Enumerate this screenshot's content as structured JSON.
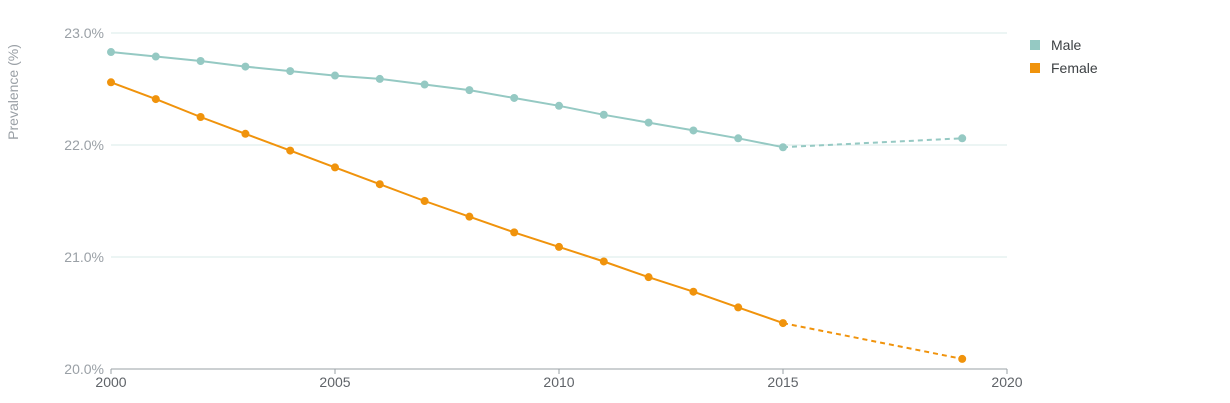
{
  "chart_data": {
    "type": "line",
    "title": "",
    "xlabel": "",
    "ylabel": "Prevalence (%)",
    "xlim": [
      2000,
      2020
    ],
    "ylim": [
      20.0,
      23.0
    ],
    "x_ticks": [
      "2000",
      "2005",
      "2010",
      "2015",
      "2020"
    ],
    "y_ticks": [
      "20.0%",
      "21.0%",
      "22.0%",
      "23.0%"
    ],
    "grid": "horizontal",
    "legend_position": "top-right",
    "series": [
      {
        "name": "Male",
        "color": "#95c9c3",
        "x": [
          2000,
          2001,
          2002,
          2003,
          2004,
          2005,
          2006,
          2007,
          2008,
          2009,
          2010,
          2011,
          2012,
          2013,
          2014,
          2015
        ],
        "values": [
          22.83,
          22.79,
          22.75,
          22.7,
          22.66,
          22.62,
          22.59,
          22.54,
          22.49,
          22.42,
          22.35,
          22.27,
          22.2,
          22.13,
          22.06,
          21.98
        ],
        "projection": {
          "x": [
            2015,
            2019
          ],
          "values": [
            21.98,
            22.06
          ]
        }
      },
      {
        "name": "Female",
        "color": "#f0930c",
        "x": [
          2000,
          2001,
          2002,
          2003,
          2004,
          2005,
          2006,
          2007,
          2008,
          2009,
          2010,
          2011,
          2012,
          2013,
          2014,
          2015
        ],
        "values": [
          22.56,
          22.41,
          22.25,
          22.1,
          21.95,
          21.8,
          21.65,
          21.5,
          21.36,
          21.22,
          21.09,
          20.96,
          20.82,
          20.69,
          20.55,
          20.41
        ],
        "projection": {
          "x": [
            2015,
            2019
          ],
          "values": [
            20.41,
            20.09
          ]
        }
      }
    ]
  }
}
